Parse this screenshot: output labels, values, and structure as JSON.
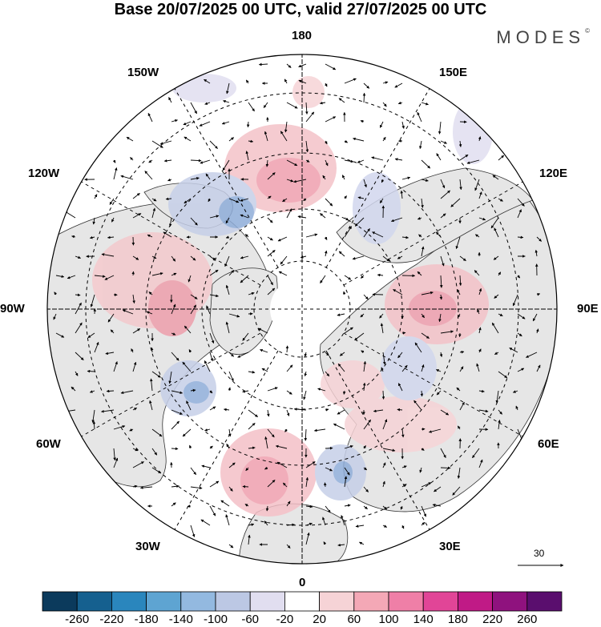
{
  "title": "Base 20/07/2025 00 UTC, valid 27/07/2025 00 UTC",
  "brand": "MODES",
  "brand_mark": "©",
  "longitude_labels": {
    "top": "180",
    "bottom": "0",
    "left": "90W",
    "right": "90E",
    "upper_left_1": "150W",
    "upper_left_2": "120W",
    "upper_right_1": "150E",
    "upper_right_2": "120E",
    "lower_left_1": "60W",
    "lower_left_2": "30W",
    "lower_right_1": "60E",
    "lower_right_2": "30E"
  },
  "vector_scale": "30",
  "colorbar": {
    "ticks": [
      "-260",
      "-220",
      "-180",
      "-140",
      "-100",
      "-60",
      "-20",
      "20",
      "60",
      "100",
      "140",
      "180",
      "220",
      "260"
    ],
    "colors": [
      "#0b3a5c",
      "#15608f",
      "#2a86bd",
      "#5ea4d2",
      "#93b9e0",
      "#bcc8e4",
      "#e1def0",
      "#ffffff",
      "#f6d3d6",
      "#f4a8b6",
      "#ef7fa7",
      "#e14597",
      "#c01a86",
      "#8f127e",
      "#5a0e6e"
    ]
  },
  "colors": {
    "land": "#e6e6e6",
    "positive": "#f2b9c0",
    "negative": "#a9bde0"
  }
}
